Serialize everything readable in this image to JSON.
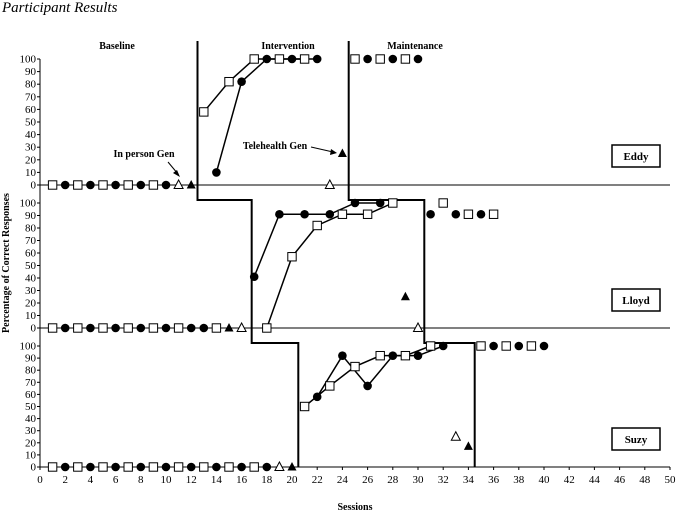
{
  "page_title": "Participant Results",
  "chart_data": {
    "type": "scatter",
    "title": "",
    "xlabel": "Sessions",
    "ylabel": "Percentage of Correct Responses",
    "xlim": [
      0,
      50
    ],
    "ylim": [
      0,
      100
    ],
    "x_ticks": [
      "0",
      "2",
      "4",
      "6",
      "8",
      "10",
      "12",
      "14",
      "16",
      "18",
      "20",
      "22",
      "24",
      "26",
      "28",
      "30",
      "32",
      "34",
      "36",
      "38",
      "40",
      "42",
      "44",
      "46",
      "48",
      "50"
    ],
    "y_ticks": [
      "0",
      "10",
      "20",
      "30",
      "40",
      "50",
      "60",
      "70",
      "80",
      "90",
      "100"
    ],
    "phase_labels": [
      "Baseline",
      "Intervention",
      "Maintenance"
    ],
    "annotations": [
      "In person Gen",
      "Telehealth Gen"
    ],
    "panels": [
      {
        "participant": "Eddy",
        "phase_changes": [
          12.5,
          24.5
        ],
        "series": [
          {
            "marker": "open-square",
            "baseline": [
              [
                1,
                0
              ],
              [
                3,
                0
              ],
              [
                5,
                0
              ],
              [
                7,
                0
              ],
              [
                9,
                0
              ]
            ],
            "intervention": [
              [
                13,
                58
              ],
              [
                15,
                82
              ],
              [
                17,
                100
              ],
              [
                19,
                100
              ],
              [
                21,
                100
              ]
            ],
            "maintenance": [
              [
                25,
                100
              ],
              [
                27,
                100
              ],
              [
                29,
                100
              ]
            ]
          },
          {
            "marker": "filled-circle",
            "baseline": [
              [
                2,
                0
              ],
              [
                4,
                0
              ],
              [
                6,
                0
              ],
              [
                8,
                0
              ],
              [
                10,
                0
              ]
            ],
            "intervention": [
              [
                14,
                10
              ],
              [
                16,
                82
              ],
              [
                18,
                100
              ],
              [
                20,
                100
              ],
              [
                22,
                100
              ]
            ],
            "maintenance": [
              [
                26,
                100
              ],
              [
                28,
                100
              ],
              [
                30,
                100
              ]
            ]
          },
          {
            "marker": "open-triangle",
            "points": [
              [
                11,
                0
              ],
              [
                23,
                0
              ]
            ]
          },
          {
            "marker": "filled-triangle",
            "points": [
              [
                12,
                0
              ],
              [
                24,
                25
              ]
            ]
          }
        ]
      },
      {
        "participant": "Lloyd",
        "phase_changes": [
          16.8,
          30.5
        ],
        "series": [
          {
            "marker": "open-square",
            "baseline": [
              [
                1,
                0
              ],
              [
                3,
                0
              ],
              [
                5,
                0
              ],
              [
                7,
                0
              ],
              [
                9,
                0
              ],
              [
                11,
                0
              ],
              [
                14,
                0
              ]
            ],
            "intervention": [
              [
                18,
                0
              ],
              [
                20,
                57
              ],
              [
                22,
                82
              ],
              [
                24,
                91
              ],
              [
                26,
                91
              ],
              [
                28,
                100
              ]
            ],
            "maintenance": [
              [
                32,
                100
              ],
              [
                34,
                91
              ],
              [
                36,
                91
              ]
            ]
          },
          {
            "marker": "filled-circle",
            "baseline": [
              [
                2,
                0
              ],
              [
                4,
                0
              ],
              [
                6,
                0
              ],
              [
                8,
                0
              ],
              [
                10,
                0
              ],
              [
                12,
                0
              ],
              [
                13,
                0
              ]
            ],
            "intervention": [
              [
                17,
                41
              ],
              [
                19,
                91
              ],
              [
                21,
                91
              ],
              [
                23,
                91
              ],
              [
                25,
                100
              ],
              [
                27,
                100
              ]
            ],
            "maintenance": [
              [
                31,
                91
              ],
              [
                33,
                91
              ],
              [
                35,
                91
              ]
            ]
          },
          {
            "marker": "open-triangle",
            "points": [
              [
                16,
                0
              ],
              [
                30,
                0
              ]
            ]
          },
          {
            "marker": "filled-triangle",
            "points": [
              [
                15,
                0
              ],
              [
                29,
                25
              ]
            ]
          }
        ]
      },
      {
        "participant": "Suzy",
        "phase_changes": [
          20.5,
          34.5
        ],
        "series": [
          {
            "marker": "open-square",
            "baseline": [
              [
                1,
                0
              ],
              [
                3,
                0
              ],
              [
                5,
                0
              ],
              [
                7,
                0
              ],
              [
                9,
                0
              ],
              [
                11,
                0
              ],
              [
                13,
                0
              ],
              [
                15,
                0
              ],
              [
                17,
                0
              ]
            ],
            "intervention": [
              [
                21,
                50
              ],
              [
                23,
                67
              ],
              [
                25,
                83
              ],
              [
                27,
                92
              ],
              [
                29,
                92
              ],
              [
                31,
                100
              ]
            ],
            "maintenance": [
              [
                35,
                100
              ],
              [
                37,
                100
              ],
              [
                39,
                100
              ]
            ]
          },
          {
            "marker": "filled-circle",
            "baseline": [
              [
                2,
                0
              ],
              [
                4,
                0
              ],
              [
                6,
                0
              ],
              [
                8,
                0
              ],
              [
                10,
                0
              ],
              [
                12,
                0
              ],
              [
                14,
                0
              ],
              [
                16,
                0
              ],
              [
                18,
                0
              ]
            ],
            "intervention": [
              [
                22,
                58
              ],
              [
                24,
                92
              ],
              [
                26,
                67
              ],
              [
                28,
                92
              ],
              [
                30,
                92
              ],
              [
                32,
                100
              ]
            ],
            "maintenance": [
              [
                36,
                100
              ],
              [
                38,
                100
              ],
              [
                40,
                100
              ]
            ]
          },
          {
            "marker": "open-triangle",
            "points": [
              [
                19,
                0
              ],
              [
                33,
                25
              ]
            ]
          },
          {
            "marker": "filled-triangle",
            "points": [
              [
                20,
                0
              ],
              [
                34,
                17
              ]
            ]
          }
        ]
      }
    ]
  }
}
